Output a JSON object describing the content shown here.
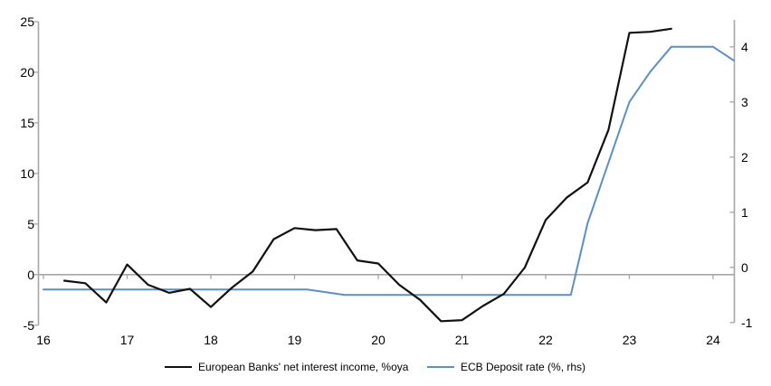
{
  "chart_data": {
    "type": "line",
    "title": "",
    "x_axis": {
      "tick_labels": [
        "16",
        "17",
        "18",
        "19",
        "20",
        "21",
        "22",
        "23",
        "24"
      ],
      "tick_values": [
        16,
        17,
        18,
        19,
        20,
        21,
        22,
        23,
        24
      ],
      "range": [
        16,
        24.26
      ]
    },
    "left_axis": {
      "tick_labels": [
        "25",
        "20",
        "15",
        "10",
        "5",
        "0",
        "-5"
      ],
      "tick_values": [
        25,
        20,
        15,
        10,
        5,
        0,
        -5
      ],
      "range": [
        -5,
        25
      ]
    },
    "right_axis": {
      "tick_labels": [
        "4",
        "3",
        "2",
        "1",
        "0",
        "-1"
      ],
      "tick_values": [
        4,
        3,
        2,
        1,
        0,
        -1
      ],
      "range": [
        -1.05,
        4.46
      ]
    },
    "grid": false,
    "zero_line": true,
    "legend_position": "bottom",
    "series": [
      {
        "name": "European Banks' net interest income, %oya",
        "axis": "left",
        "color": "#111111",
        "points": [
          [
            16.25,
            -0.6
          ],
          [
            16.5,
            -0.85
          ],
          [
            16.75,
            -2.75
          ],
          [
            17.0,
            1.0
          ],
          [
            17.25,
            -1.0
          ],
          [
            17.5,
            -1.8
          ],
          [
            17.75,
            -1.4
          ],
          [
            18.0,
            -3.2
          ],
          [
            18.25,
            -1.3
          ],
          [
            18.5,
            0.3
          ],
          [
            18.75,
            3.5
          ],
          [
            19.0,
            4.6
          ],
          [
            19.25,
            4.4
          ],
          [
            19.5,
            4.5
          ],
          [
            19.75,
            1.4
          ],
          [
            20.0,
            1.1
          ],
          [
            20.25,
            -1.0
          ],
          [
            20.5,
            -2.5
          ],
          [
            20.75,
            -4.6
          ],
          [
            21.0,
            -4.5
          ],
          [
            21.25,
            -3.1
          ],
          [
            21.5,
            -1.9
          ],
          [
            21.75,
            0.7
          ],
          [
            22.0,
            5.4
          ],
          [
            22.25,
            7.6
          ],
          [
            22.5,
            9.1
          ],
          [
            22.75,
            14.3
          ],
          [
            23.0,
            23.9
          ],
          [
            23.25,
            24.0
          ],
          [
            23.5,
            24.3
          ]
        ]
      },
      {
        "name": "ECB Deposit rate (%, rhs)",
        "axis": "right",
        "color": "#5b8fc8",
        "points": [
          [
            16.0,
            -0.4
          ],
          [
            19.15,
            -0.4
          ],
          [
            19.6,
            -0.5
          ],
          [
            22.3,
            -0.5
          ],
          [
            22.5,
            0.8
          ],
          [
            22.75,
            1.9
          ],
          [
            23.0,
            3.0
          ],
          [
            23.25,
            3.55
          ],
          [
            23.5,
            4.0
          ],
          [
            24.0,
            4.0
          ],
          [
            24.25,
            3.75
          ]
        ]
      }
    ],
    "colors": {
      "axis": "#a6a6a6",
      "zero_line": "#a6a6a6",
      "text": "#000000",
      "background": "#ffffff"
    }
  },
  "legend": {
    "items": [
      {
        "label": "European Banks' net interest income, %oya",
        "color": "#111111"
      },
      {
        "label": "ECB Deposit rate (%, rhs)",
        "color": "#5b8fc8"
      }
    ]
  }
}
